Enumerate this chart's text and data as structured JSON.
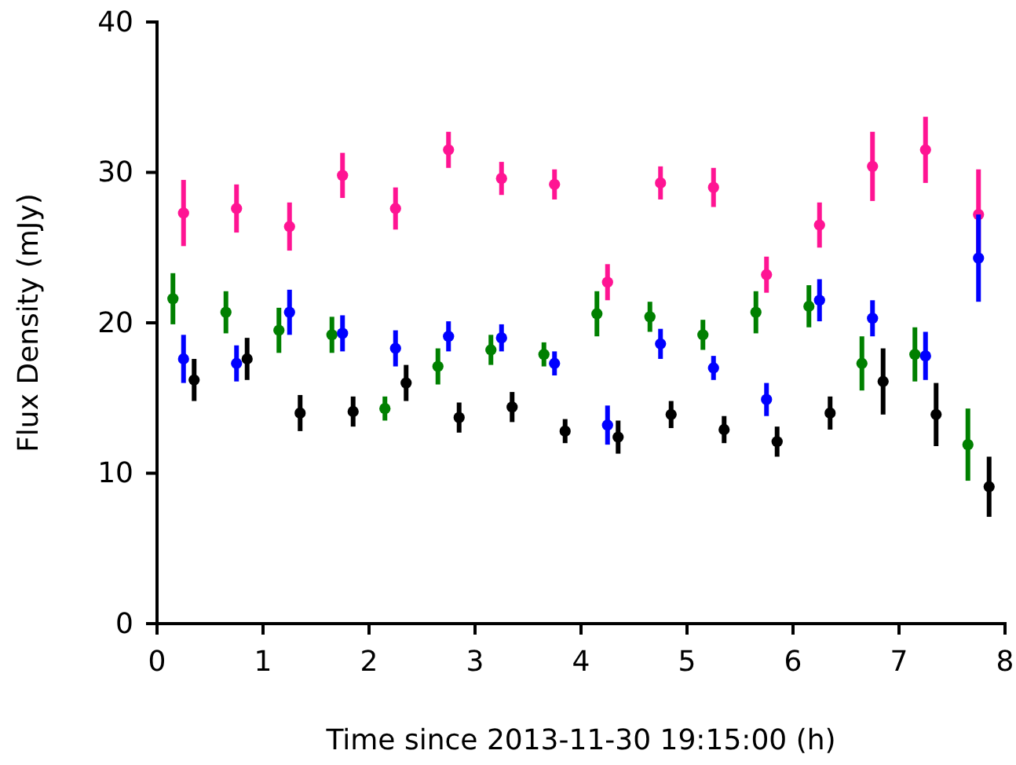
{
  "chart_data": {
    "type": "scatter",
    "xlabel": "Time since 2013-11-30 19:15:00 (h)",
    "ylabel": "Flux Density (mJy)",
    "xlim": [
      0,
      8
    ],
    "xticks": [
      0,
      1,
      2,
      3,
      4,
      5,
      6,
      7,
      8
    ],
    "ylim": [
      0,
      40
    ],
    "yticks": [
      0,
      10,
      20,
      30,
      40
    ],
    "grid": false,
    "marker": "circle",
    "series": [
      {
        "color": "#008000",
        "x": [
          0.15,
          0.65,
          1.15,
          1.65,
          2.15,
          2.65,
          3.15,
          3.65,
          4.15,
          4.65,
          5.15,
          5.65,
          6.15,
          6.65,
          7.15,
          7.65
        ],
        "values": [
          21.6,
          20.7,
          19.5,
          19.2,
          14.3,
          17.1,
          18.2,
          17.9,
          20.6,
          20.4,
          19.2,
          20.7,
          21.1,
          17.3,
          17.9,
          11.9
        ],
        "errors": [
          1.7,
          1.4,
          1.5,
          1.2,
          0.8,
          1.2,
          1.0,
          0.8,
          1.5,
          1.0,
          1.0,
          1.4,
          1.4,
          1.8,
          1.8,
          2.4
        ]
      },
      {
        "color": "#ff1493",
        "x": [
          0.25,
          0.75,
          1.25,
          1.75,
          2.25,
          2.75,
          3.25,
          3.75,
          4.25,
          4.75,
          5.25,
          5.75,
          6.25,
          6.75,
          7.25,
          7.75
        ],
        "values": [
          27.3,
          27.6,
          26.4,
          29.8,
          27.6,
          31.5,
          29.6,
          29.2,
          22.7,
          29.3,
          29.0,
          23.2,
          26.5,
          30.4,
          31.5,
          27.2
        ],
        "errors": [
          2.2,
          1.6,
          1.6,
          1.5,
          1.4,
          1.2,
          1.1,
          1.0,
          1.2,
          1.1,
          1.3,
          1.2,
          1.5,
          2.3,
          2.2,
          3.0
        ]
      },
      {
        "color": "#0000ff",
        "x": [
          0.25,
          0.75,
          1.25,
          1.75,
          2.25,
          2.75,
          3.25,
          3.75,
          4.25,
          4.75,
          5.25,
          5.75,
          6.25,
          6.75,
          7.25,
          7.75
        ],
        "values": [
          17.6,
          17.3,
          20.7,
          19.3,
          18.3,
          19.1,
          19.0,
          17.3,
          13.2,
          18.6,
          17.0,
          14.9,
          21.5,
          20.3,
          17.8,
          24.3
        ],
        "errors": [
          1.6,
          1.2,
          1.5,
          1.2,
          1.2,
          1.0,
          0.9,
          0.8,
          1.3,
          1.0,
          0.8,
          1.1,
          1.4,
          1.2,
          1.6,
          2.9
        ]
      },
      {
        "color": "#000000",
        "x": [
          0.35,
          0.85,
          1.35,
          1.85,
          2.35,
          2.85,
          3.35,
          3.85,
          4.35,
          4.85,
          5.35,
          5.85,
          6.35,
          6.85,
          7.35,
          7.85
        ],
        "values": [
          16.2,
          17.6,
          14.0,
          14.1,
          16.0,
          13.7,
          14.4,
          12.8,
          12.4,
          13.9,
          12.9,
          12.1,
          14.0,
          16.1,
          13.9,
          9.1
        ],
        "errors": [
          1.4,
          1.4,
          1.2,
          1.0,
          1.2,
          1.0,
          1.0,
          0.8,
          1.1,
          0.9,
          0.9,
          1.0,
          1.1,
          2.2,
          2.1,
          2.0
        ]
      }
    ]
  }
}
